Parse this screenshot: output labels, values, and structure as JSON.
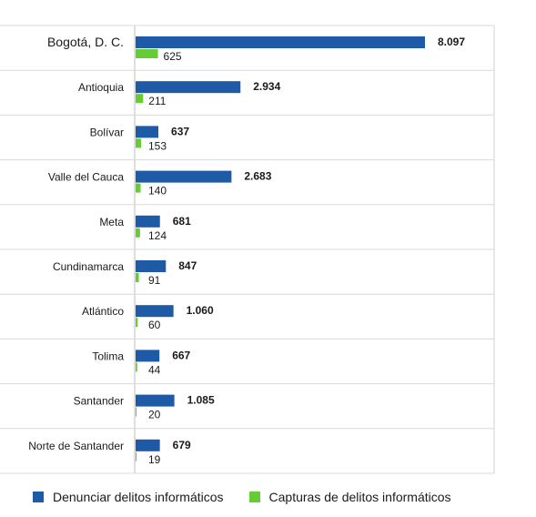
{
  "chart_data": {
    "type": "bar",
    "orientation": "horizontal",
    "categories": [
      "Bogotá, D. C.",
      "Antioquia",
      "Bolívar",
      "Valle del Cauca",
      "Meta",
      "Cundinamarca",
      "Atlántico",
      "Tolima",
      "Santander",
      "Norte de Santander"
    ],
    "series": [
      {
        "name": "Denunciar delitos informáticos",
        "color": "#1f5aa6",
        "values": [
          8097,
          2934,
          637,
          2683,
          681,
          847,
          1060,
          667,
          1085,
          679
        ],
        "labels": [
          "8.097",
          "2.934",
          "637",
          "2.683",
          "681",
          "847",
          "1.060",
          "667",
          "1.085",
          "679"
        ]
      },
      {
        "name": "Capturas de delitos informáticos",
        "color": "#66cc33",
        "values": [
          625,
          211,
          153,
          140,
          124,
          91,
          60,
          44,
          20,
          19
        ],
        "labels": [
          "625",
          "211",
          "153",
          "140",
          "124",
          "91",
          "60",
          "44",
          "20",
          "19"
        ]
      }
    ],
    "legend_position": "bottom",
    "grid": false,
    "xlim": [
      0,
      9000
    ]
  }
}
